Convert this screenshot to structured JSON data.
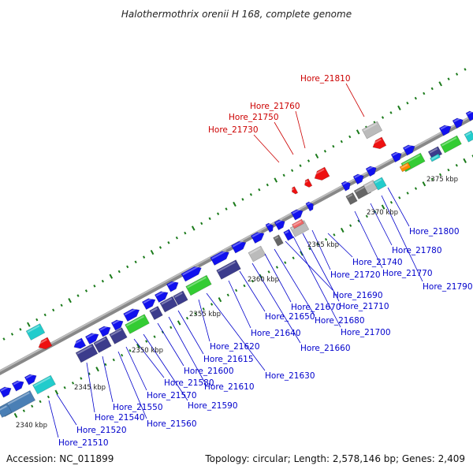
{
  "title": "Halothermothrix orenii H 168, complete genome",
  "footer": {
    "accession": "Accession: NC_011899",
    "summary": "Topology: circular; Length: 2,578,146 bp; Genes: 2,409"
  },
  "colors": {
    "forward_gene": "#1111ee",
    "reverse_gene": "#1111ee",
    "highlight_gene": "#ee1111",
    "rna_green": "#33cc33",
    "operon_purple": "#3c3c8c",
    "steel": "#4a7fb5",
    "cyan": "#22cccc",
    "grey": "#bbbbbb",
    "dark_grey": "#666666",
    "orange": "#ff8800",
    "backbone": "#888888",
    "tick_dot": "#1a7a1a",
    "label_blue": "#0000cc",
    "label_red": "#cc0000"
  },
  "kbp_ticks": [
    "2340 kbp",
    "2345 kbp",
    "2350 kbp",
    "2355 kbp",
    "2360 kbp",
    "2365 kbp",
    "2370 kbp",
    "2375 kbp"
  ],
  "labels_blue": [
    "Hore_21510",
    "Hore_21520",
    "Hore_21540",
    "Hore_21550",
    "Hore_21560",
    "Hore_21570",
    "Hore_21580",
    "Hore_21590",
    "Hore_21600",
    "Hore_21610",
    "Hore_21615",
    "Hore_21620",
    "Hore_21630",
    "Hore_21640",
    "Hore_21650",
    "Hore_21660",
    "Hore_21670",
    "Hore_21680",
    "Hore_21690",
    "Hore_21700",
    "Hore_21710",
    "Hore_21720",
    "Hore_21740",
    "Hore_21770",
    "Hore_21780",
    "Hore_21790",
    "Hore_21800"
  ],
  "labels_red": [
    "Hore_21730",
    "Hore_21750",
    "Hore_21760",
    "Hore_21810"
  ]
}
